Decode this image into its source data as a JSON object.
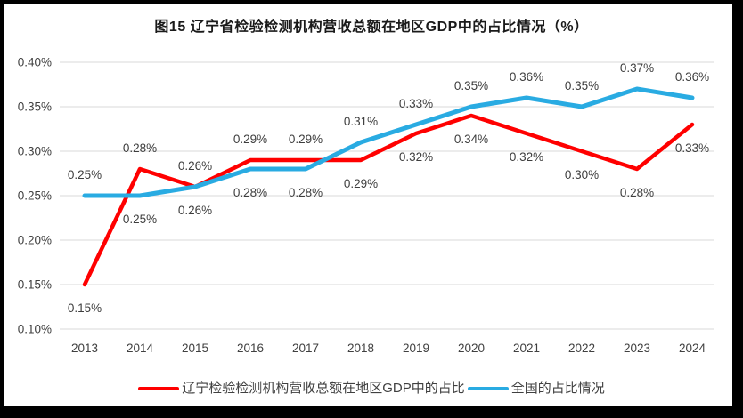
{
  "frame": {
    "border_color": "#000000",
    "background_color": "#FFFFFF"
  },
  "chart_data": {
    "type": "line",
    "title": "图15 辽宁省检验检测机构营收总额在地区GDP中的占比情况（%）",
    "categories": [
      "2013",
      "2014",
      "2015",
      "2016",
      "2017",
      "2018",
      "2019",
      "2020",
      "2021",
      "2022",
      "2023",
      "2024"
    ],
    "series": [
      {
        "name": "辽宁检验检测机构营收总额在地区GDP中的占比",
        "color": "#FF0000",
        "values": [
          0.15,
          0.28,
          0.26,
          0.29,
          0.29,
          0.29,
          0.32,
          0.34,
          0.32,
          0.3,
          0.28,
          0.33
        ],
        "point_labels": [
          "0.15%",
          "0.28%",
          "0.26%",
          "0.29%",
          "0.29%",
          "0.29%",
          "0.32%",
          "0.34%",
          "0.32%",
          "0.30%",
          "0.28%",
          "0.33%"
        ]
      },
      {
        "name": "全国的占比情况",
        "color": "#29ABE2",
        "values": [
          0.25,
          0.25,
          0.26,
          0.28,
          0.28,
          0.31,
          0.33,
          0.35,
          0.36,
          0.35,
          0.37,
          0.36
        ],
        "point_labels": [
          "0.25%",
          "0.25%",
          "0.26%",
          "0.28%",
          "0.28%",
          "0.31%",
          "0.33%",
          "0.35%",
          "0.36%",
          "0.35%",
          "0.37%",
          "0.36%"
        ]
      }
    ],
    "value_unit": "%",
    "ylim": [
      0.1,
      0.4
    ],
    "ytick_labels": [
      "0.40%",
      "0.35%",
      "0.30%",
      "0.25%",
      "0.20%",
      "0.15%",
      "0.10%"
    ],
    "ytick_values": [
      0.4,
      0.35,
      0.3,
      0.25,
      0.2,
      0.15,
      0.1
    ],
    "grid": true,
    "gridline_color": "#D9D9D9",
    "axis_text_color": "#404040",
    "data_label_color": "#3D3D3D",
    "legend_position": "bottom"
  }
}
